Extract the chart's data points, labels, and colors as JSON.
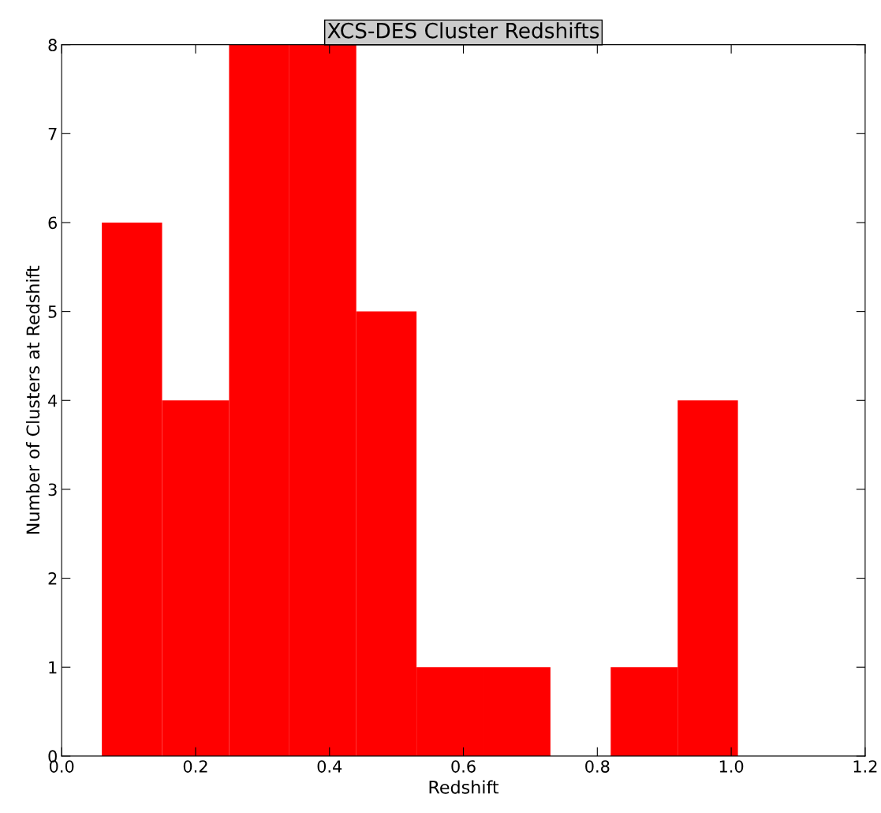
{
  "chart_data": {
    "type": "histogram",
    "title": "XCS-DES Cluster Redshifts",
    "xlabel": "Redshift",
    "ylabel": "Number of Clusters at Redshift",
    "bins": [
      0.06,
      0.15,
      0.25,
      0.34,
      0.44,
      0.53,
      0.63,
      0.73,
      0.82,
      0.92,
      1.01
    ],
    "values": [
      6,
      4,
      8,
      8,
      5,
      1,
      1,
      0,
      1,
      4
    ],
    "color": "#ff0000",
    "xlim": [
      0.0,
      1.2
    ],
    "xticks": [
      {
        "value": 0.0,
        "label": "0.0"
      },
      {
        "value": 0.2,
        "label": "0.2"
      },
      {
        "value": 0.4,
        "label": "0.4"
      },
      {
        "value": 0.6,
        "label": "0.6"
      },
      {
        "value": 0.8,
        "label": "0.8"
      },
      {
        "value": 1.0,
        "label": "1.0"
      },
      {
        "value": 1.2,
        "label": "1.2"
      }
    ],
    "ylim": [
      0,
      8
    ],
    "yticks": [
      0,
      1,
      2,
      3,
      4,
      5,
      6,
      7,
      8
    ],
    "grid": false,
    "legend": false
  }
}
